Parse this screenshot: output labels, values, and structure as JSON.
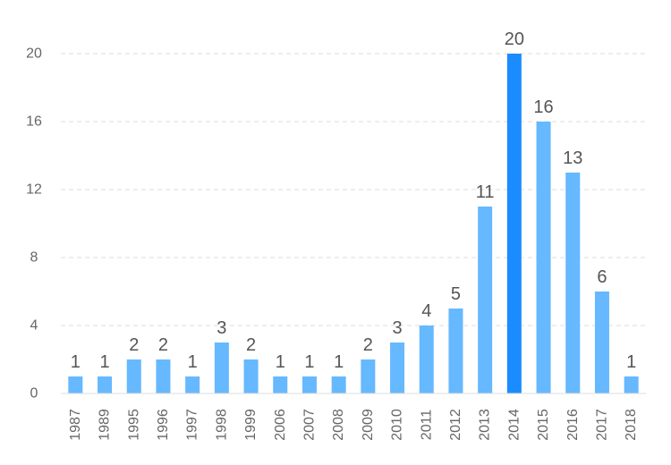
{
  "chart_data": {
    "type": "bar",
    "title": "",
    "xlabel": "",
    "ylabel": "",
    "ylim": [
      0,
      20
    ],
    "yticks": [
      0,
      4,
      8,
      12,
      16,
      20
    ],
    "grid": true,
    "categories": [
      "1987",
      "1989",
      "1995",
      "1996",
      "1997",
      "1998",
      "1999",
      "2006",
      "2007",
      "2008",
      "2009",
      "2010",
      "2011",
      "2012",
      "2013",
      "2014",
      "2015",
      "2016",
      "2017",
      "2018"
    ],
    "values": [
      1,
      1,
      2,
      2,
      1,
      3,
      2,
      1,
      1,
      1,
      2,
      3,
      4,
      5,
      11,
      20,
      16,
      13,
      6,
      1
    ],
    "highlight_index": 15,
    "colors": {
      "bar": "#66b8ff",
      "bar_highlight": "#1a8cff",
      "grid": "#dcdcdc",
      "tick_text": "#666666",
      "label_text": "#555555"
    }
  }
}
